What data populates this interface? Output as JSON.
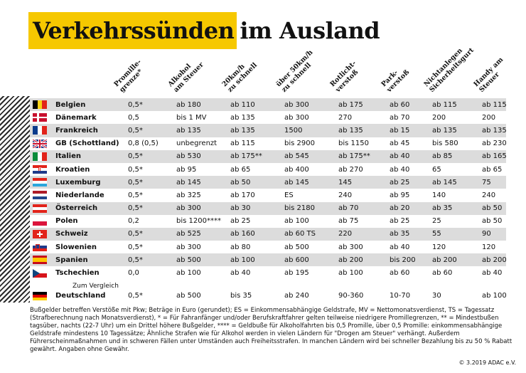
{
  "title": {
    "highlight": "Verkehrssünden",
    "rest": "im Ausland"
  },
  "columns": [
    "Promille-\ngrenze*",
    "Alkohol\nam Steuer",
    "20km/h\nzu schnell",
    "über 50km/h\nzu schnell",
    "Rotlicht-\nverstoß",
    "Park-\nverstoß",
    "Nichtanlegen\nSicherheitsgurt",
    "Handy am\nSteuer"
  ],
  "rows": [
    {
      "flag": "belgium",
      "country": "Belgien",
      "values": [
        "0,5*",
        "ab 180",
        "ab 110",
        "ab 300",
        "ab 175",
        "ab 60",
        "ab 115",
        "ab 115"
      ]
    },
    {
      "flag": "denmark",
      "country": "Dänemark",
      "values": [
        "0,5",
        "bis 1 MV",
        "ab 135",
        "ab 300",
        "270",
        "ab 70",
        "200",
        "200"
      ]
    },
    {
      "flag": "france",
      "country": "Frankreich",
      "values": [
        "0,5*",
        "ab 135",
        "ab 135",
        "1500",
        "ab 135",
        "ab 15",
        "ab 135",
        "ab 135"
      ]
    },
    {
      "flag": "uk",
      "country": "GB (Schottland)",
      "values": [
        "0,8 (0,5)",
        "unbegrenzt",
        "ab 115",
        "bis 2900",
        "bis 1150",
        "ab 45",
        "bis 580",
        "ab 230"
      ]
    },
    {
      "flag": "italy",
      "country": "Italien",
      "values": [
        "0,5*",
        "ab 530",
        "ab 175**",
        "ab 545",
        "ab 175**",
        "ab 40",
        "ab 85",
        "ab 165"
      ]
    },
    {
      "flag": "croatia",
      "country": "Kroatien",
      "values": [
        "0,5*",
        "ab 95",
        "ab 65",
        "ab 400",
        "ab 270",
        "ab 40",
        "65",
        "ab 65"
      ]
    },
    {
      "flag": "luxembourg",
      "country": "Luxemburg",
      "values": [
        "0,5*",
        "ab 145",
        "ab 50",
        "ab 145",
        "145",
        "ab 25",
        "ab 145",
        "75"
      ]
    },
    {
      "flag": "netherlands",
      "country": "Niederlande",
      "values": [
        "0,5*",
        "ab 325",
        "ab 170",
        "ES",
        "240",
        "ab 95",
        "140",
        "240"
      ]
    },
    {
      "flag": "austria",
      "country": "Österreich",
      "values": [
        "0,5*",
        "ab 300",
        "ab 30",
        "bis 2180",
        "ab 70",
        "ab 20",
        "ab 35",
        "ab 50"
      ]
    },
    {
      "flag": "poland",
      "country": "Polen",
      "values": [
        "0,2",
        "bis 1200****",
        "ab 25",
        "ab 100",
        "ab 75",
        "ab 25",
        "25",
        "ab 50"
      ]
    },
    {
      "flag": "switzerland",
      "country": "Schweiz",
      "values": [
        "0,5*",
        "ab 525",
        "ab 160",
        "ab 60 TS",
        "220",
        "ab 35",
        "55",
        "90"
      ]
    },
    {
      "flag": "slovenia",
      "country": "Slowenien",
      "values": [
        "0,5*",
        "ab 300",
        "ab 80",
        "ab 500",
        "ab 300",
        "ab 40",
        "120",
        "120"
      ]
    },
    {
      "flag": "spain",
      "country": "Spanien",
      "values": [
        "0,5*",
        "ab 500",
        "ab 100",
        "ab 600",
        "ab 200",
        "bis 200",
        "ab 200",
        "ab 200"
      ]
    },
    {
      "flag": "czech",
      "country": "Tschechien",
      "values": [
        "0,0",
        "ab 100",
        "ab 40",
        "ab 195",
        "ab 100",
        "ab 60",
        "ab 60",
        "ab 40"
      ]
    }
  ],
  "comparison_label": "Zum Vergleich",
  "germany": {
    "flag": "germany",
    "country": "Deutschland",
    "values": [
      "0,5*",
      "ab 500",
      "bis 35",
      "ab 240",
      "90-360",
      "10-70",
      "30",
      "ab 100"
    ]
  },
  "footnote": "Bußgelder betreffen Verstöße mit Pkw; Beträge in Euro (gerundet); ES = Einkommensabhängige Geldstrafe, MV = Nettomonatsverdienst, TS = Tagessatz (Strafberechnung nach Monatsverdienst), * = Für Fahranfänger und/oder Berufskraftfahrer gelten teilweise niedrigere Promillegrenzen, ** = Mindestbußen tagsüber, nachts (22-7 Uhr) um ein Drittel höhere Bußgelder, **** = Geldbuße für Alkoholfahrten bis 0,5 Promille, über 0,5 Promille: einkommensabhängige Geldstrafe mindestens 10 Tagessätze; Ähnliche Strafen wie für Alkohol werden in vielen Ländern für \"Drogen am Steuer\" verhängt. Außerdem Führerscheinmaßnahmen und in schweren Fällen unter Umständen auch Freiheitsstrafen. In manchen Ländern wird bei schneller Bezahlung bis zu 50 % Rabatt gewährt. Angaben ohne Gewähr.",
  "copyright": "© 3.2019 ADAC e.V.",
  "colors": {
    "highlight": "#f6c800",
    "row_shade": "#dcdcdc"
  }
}
